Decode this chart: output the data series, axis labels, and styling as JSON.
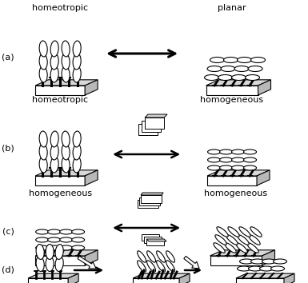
{
  "background_color": "#ffffff",
  "labels": {
    "a_left": "homeotropic",
    "a_right": "planar",
    "b_left": "homeotropic",
    "b_right": "homogeneous",
    "c_left": "homogeneous",
    "c_right": "homogeneous",
    "row_a": "(a)",
    "row_b": "(b)",
    "row_c": "(c)",
    "row_d": "(d)"
  },
  "figsize": [
    3.85,
    3.54
  ],
  "dpi": 100
}
